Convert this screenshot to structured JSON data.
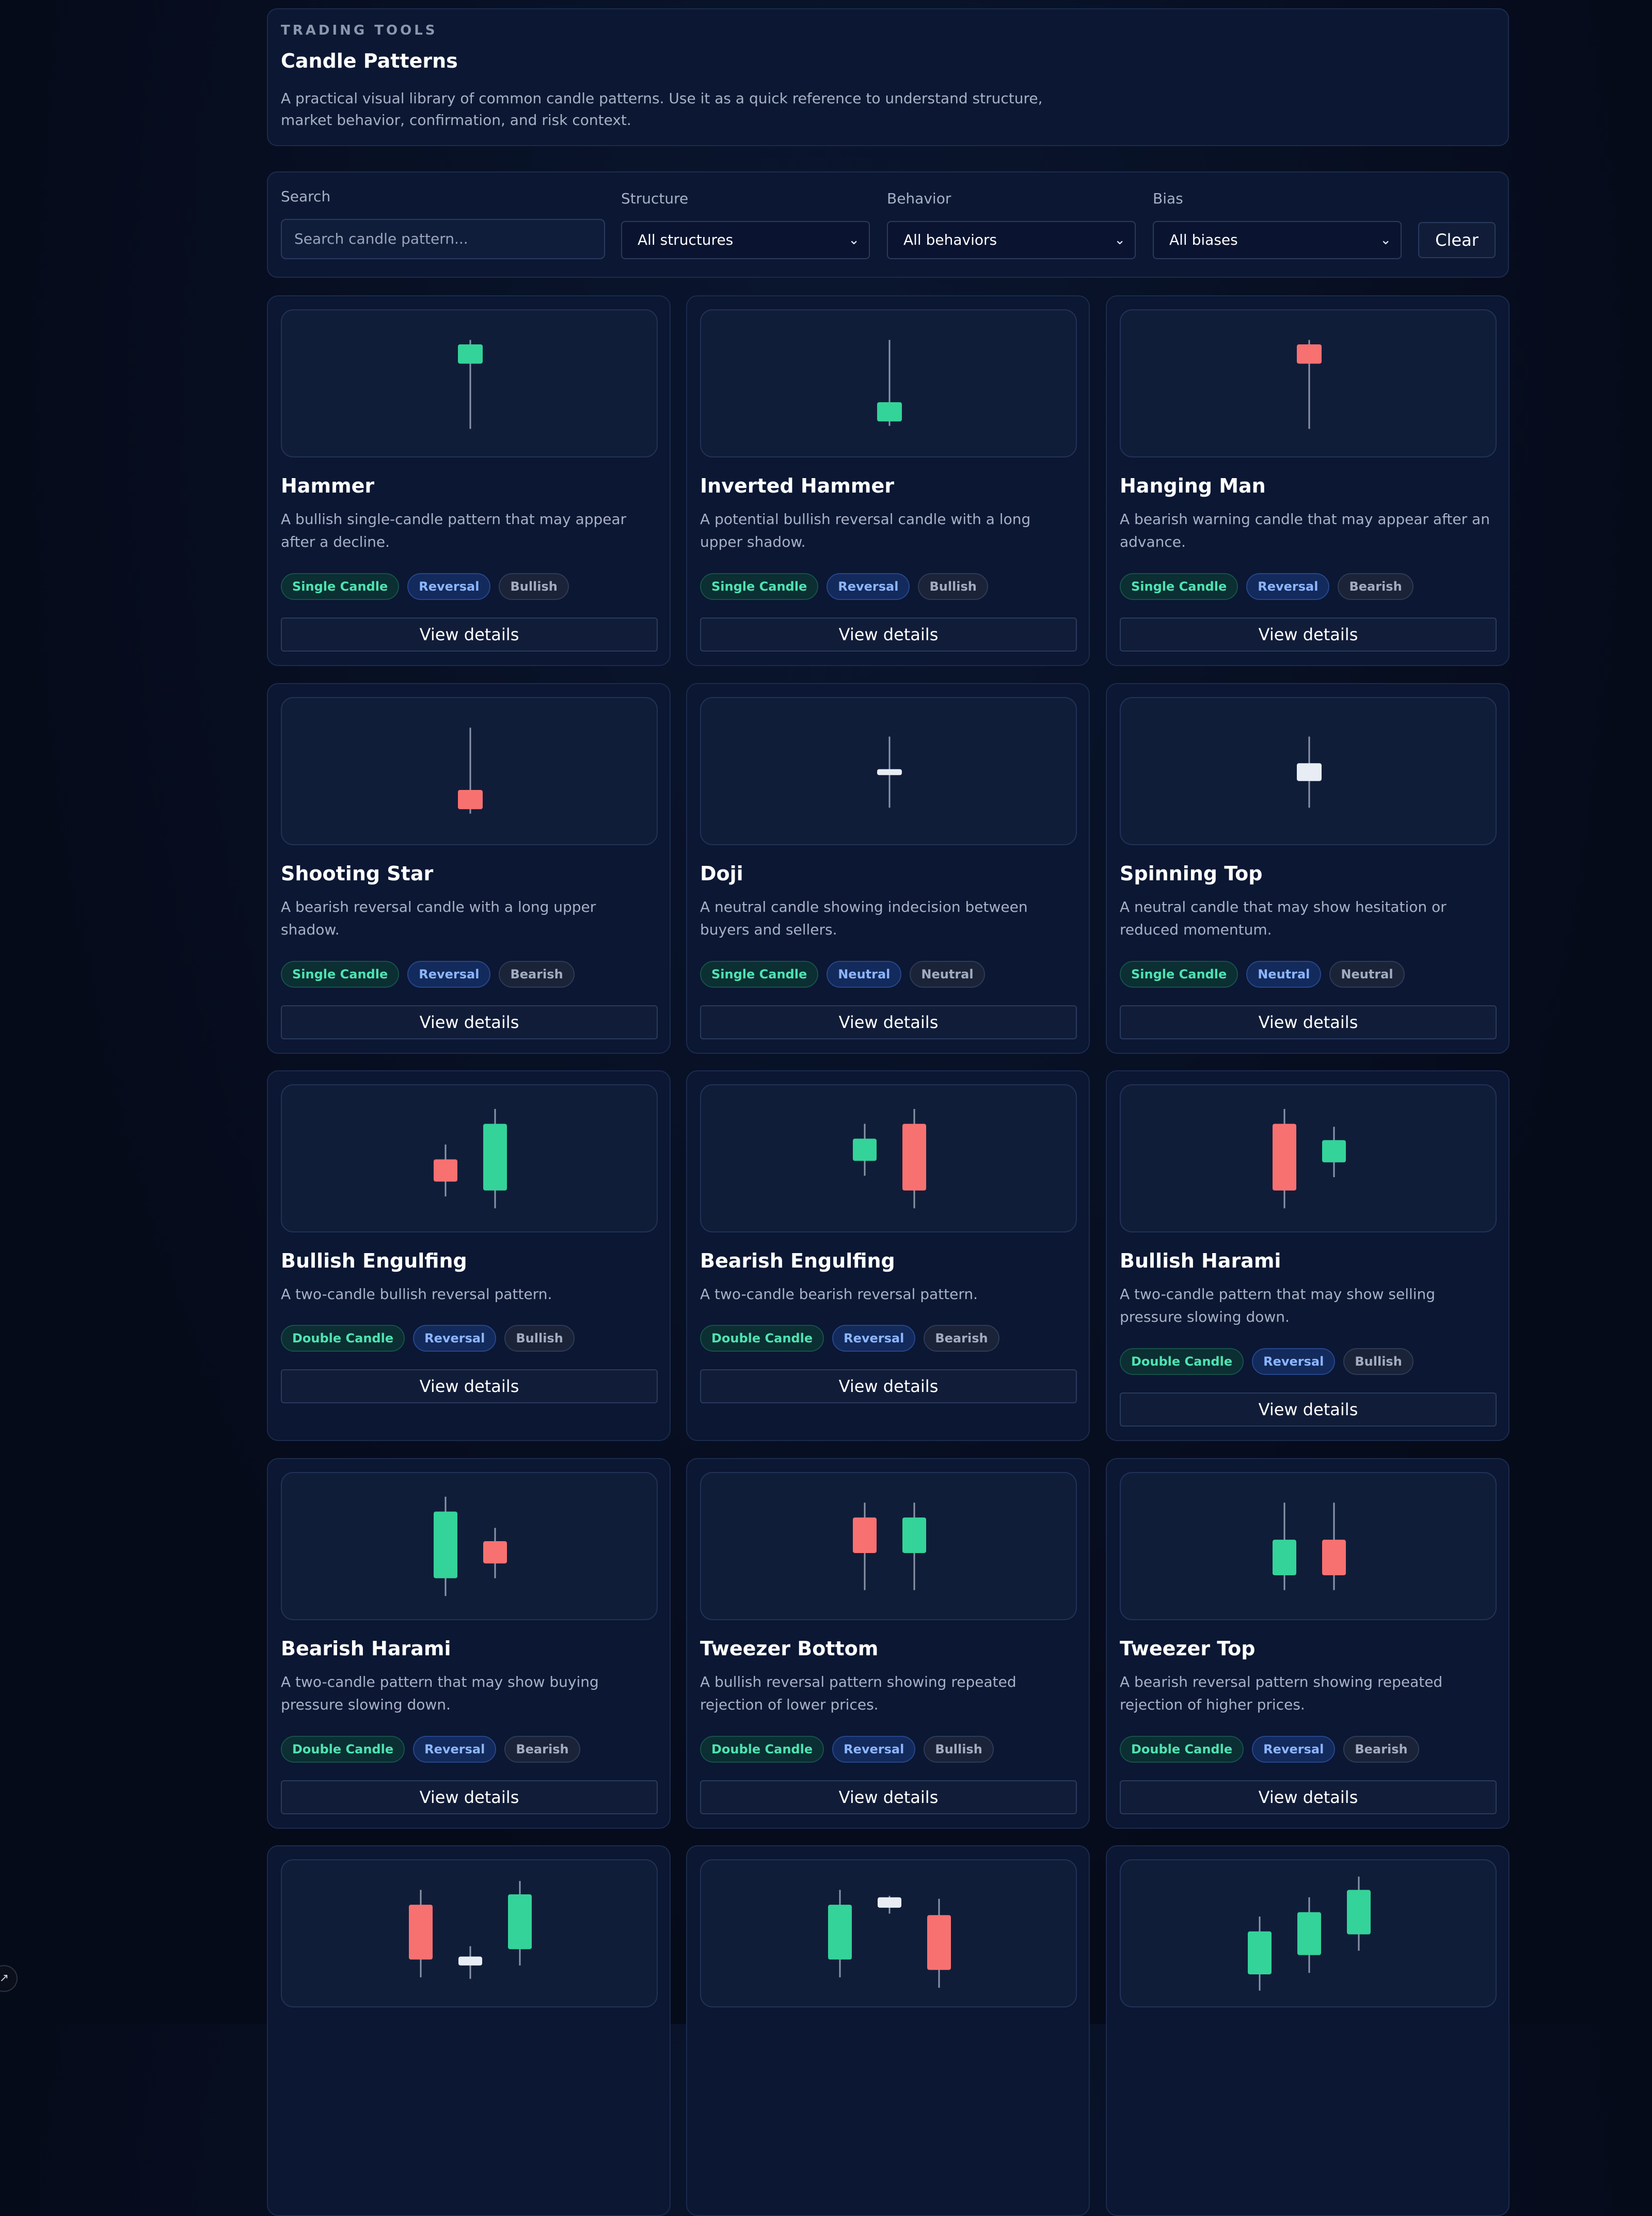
{
  "hero": {
    "eyebrow": "TRADING TOOLS",
    "title": "Candle Patterns",
    "description": "A practical visual library of common candle patterns. Use it as a quick reference to understand structure, market behavior, confirmation, and risk context."
  },
  "filters": {
    "search_label": "Search",
    "search_placeholder": "Search candle pattern...",
    "structure_label": "Structure",
    "structure_value": "All structures",
    "behavior_label": "Behavior",
    "behavior_value": "All behaviors",
    "bias_label": "Bias",
    "bias_value": "All biases",
    "clear_label": "Clear"
  },
  "colors": {
    "bull": "#34d399",
    "bear": "#f87171",
    "neutral": "#e8edf5",
    "wick": "#8b95a8"
  },
  "view_label": "View details",
  "cards": [
    {
      "title": "Hammer",
      "desc": "A bullish single-candle pattern that may appear after a decline.",
      "tags": [
        "Single Candle",
        "Reversal",
        "Bullish"
      ],
      "candles": [
        {
          "t": "bull",
          "wt": 0.2,
          "bt": 0.23,
          "bb": 0.36,
          "wb": 0.8
        }
      ]
    },
    {
      "title": "Inverted Hammer",
      "desc": "A potential bullish reversal candle with a long upper shadow.",
      "tags": [
        "Single Candle",
        "Reversal",
        "Bullish"
      ],
      "candles": [
        {
          "t": "bull",
          "wt": 0.2,
          "bt": 0.62,
          "bb": 0.75,
          "wb": 0.78
        }
      ]
    },
    {
      "title": "Hanging Man",
      "desc": "A bearish warning candle that may appear after an advance.",
      "tags": [
        "Single Candle",
        "Reversal",
        "Bearish"
      ],
      "candles": [
        {
          "t": "bear",
          "wt": 0.2,
          "bt": 0.23,
          "bb": 0.36,
          "wb": 0.8
        }
      ]
    },
    {
      "title": "Shooting Star",
      "desc": "A bearish reversal candle with a long upper shadow.",
      "tags": [
        "Single Candle",
        "Reversal",
        "Bearish"
      ],
      "candles": [
        {
          "t": "bear",
          "wt": 0.2,
          "bt": 0.62,
          "bb": 0.75,
          "wb": 0.78
        }
      ]
    },
    {
      "title": "Doji",
      "desc": "A neutral candle showing indecision between buyers and sellers.",
      "tags": [
        "Single Candle",
        "Neutral",
        "Neutral"
      ],
      "candles": [
        {
          "t": "neutral",
          "wt": 0.26,
          "bt": 0.48,
          "bb": 0.52,
          "wb": 0.74
        }
      ]
    },
    {
      "title": "Spinning Top",
      "desc": "A neutral candle that may show hesitation or reduced momentum.",
      "tags": [
        "Single Candle",
        "Neutral",
        "Neutral"
      ],
      "candles": [
        {
          "t": "neutral",
          "wt": 0.26,
          "bt": 0.44,
          "bb": 0.56,
          "wb": 0.74
        }
      ]
    },
    {
      "title": "Bullish Engulfing",
      "desc": "A two-candle bullish reversal pattern.",
      "tags": [
        "Double Candle",
        "Reversal",
        "Bullish"
      ],
      "candles": [
        {
          "t": "bear",
          "wt": 0.4,
          "bt": 0.5,
          "bb": 0.65,
          "wb": 0.75
        },
        {
          "t": "bull",
          "wt": 0.16,
          "bt": 0.26,
          "bb": 0.71,
          "wb": 0.83
        }
      ]
    },
    {
      "title": "Bearish Engulfing",
      "desc": "A two-candle bearish reversal pattern.",
      "tags": [
        "Double Candle",
        "Reversal",
        "Bearish"
      ],
      "candles": [
        {
          "t": "bull",
          "wt": 0.26,
          "bt": 0.36,
          "bb": 0.51,
          "wb": 0.61
        },
        {
          "t": "bear",
          "wt": 0.16,
          "bt": 0.26,
          "bb": 0.71,
          "wb": 0.83
        }
      ]
    },
    {
      "title": "Bullish Harami",
      "desc": "A two-candle pattern that may show selling pressure slowing down.",
      "tags": [
        "Double Candle",
        "Reversal",
        "Bullish"
      ],
      "candles": [
        {
          "t": "bear",
          "wt": 0.16,
          "bt": 0.26,
          "bb": 0.71,
          "wb": 0.83
        },
        {
          "t": "bull",
          "wt": 0.28,
          "bt": 0.37,
          "bb": 0.52,
          "wb": 0.62
        }
      ]
    },
    {
      "title": "Bearish Harami",
      "desc": "A two-candle pattern that may show buying pressure slowing down.",
      "tags": [
        "Double Candle",
        "Reversal",
        "Bearish"
      ],
      "candles": [
        {
          "t": "bull",
          "wt": 0.16,
          "bt": 0.26,
          "bb": 0.71,
          "wb": 0.83
        },
        {
          "t": "bear",
          "wt": 0.37,
          "bt": 0.46,
          "bb": 0.61,
          "wb": 0.71
        }
      ]
    },
    {
      "title": "Tweezer Bottom",
      "desc": "A bullish reversal pattern showing repeated rejection of lower prices.",
      "tags": [
        "Double Candle",
        "Reversal",
        "Bullish"
      ],
      "candles": [
        {
          "t": "bear",
          "wt": 0.2,
          "bt": 0.3,
          "bb": 0.54,
          "wb": 0.79
        },
        {
          "t": "bull",
          "wt": 0.2,
          "bt": 0.3,
          "bb": 0.54,
          "wb": 0.79
        }
      ]
    },
    {
      "title": "Tweezer Top",
      "desc": "A bearish reversal pattern showing repeated rejection of higher prices.",
      "tags": [
        "Double Candle",
        "Reversal",
        "Bearish"
      ],
      "candles": [
        {
          "t": "bull",
          "wt": 0.2,
          "bt": 0.45,
          "bb": 0.69,
          "wb": 0.79
        },
        {
          "t": "bear",
          "wt": 0.2,
          "bt": 0.45,
          "bb": 0.69,
          "wb": 0.79
        }
      ]
    },
    {
      "title": "",
      "desc": "",
      "tags": [],
      "candles": [
        {
          "t": "bear",
          "wt": 0.2,
          "bt": 0.3,
          "bb": 0.67,
          "wb": 0.79
        },
        {
          "t": "neutral",
          "wt": 0.58,
          "bt": 0.65,
          "bb": 0.71,
          "wb": 0.8
        },
        {
          "t": "bull",
          "wt": 0.14,
          "bt": 0.23,
          "bb": 0.6,
          "wb": 0.71
        }
      ]
    },
    {
      "title": "",
      "desc": "",
      "tags": [],
      "candles": [
        {
          "t": "bull",
          "wt": 0.2,
          "bt": 0.3,
          "bb": 0.67,
          "wb": 0.79
        },
        {
          "t": "neutral",
          "wt": 0.24,
          "bt": 0.25,
          "bb": 0.32,
          "wb": 0.36
        },
        {
          "t": "bear",
          "wt": 0.26,
          "bt": 0.37,
          "bb": 0.74,
          "wb": 0.86
        }
      ]
    },
    {
      "title": "",
      "desc": "",
      "tags": [],
      "candles": [
        {
          "t": "bull",
          "wt": 0.38,
          "bt": 0.48,
          "bb": 0.77,
          "wb": 0.88
        },
        {
          "t": "bull",
          "wt": 0.25,
          "bt": 0.35,
          "bb": 0.64,
          "wb": 0.76
        },
        {
          "t": "bull",
          "wt": 0.11,
          "bt": 0.2,
          "bb": 0.5,
          "wb": 0.61
        }
      ]
    }
  ]
}
